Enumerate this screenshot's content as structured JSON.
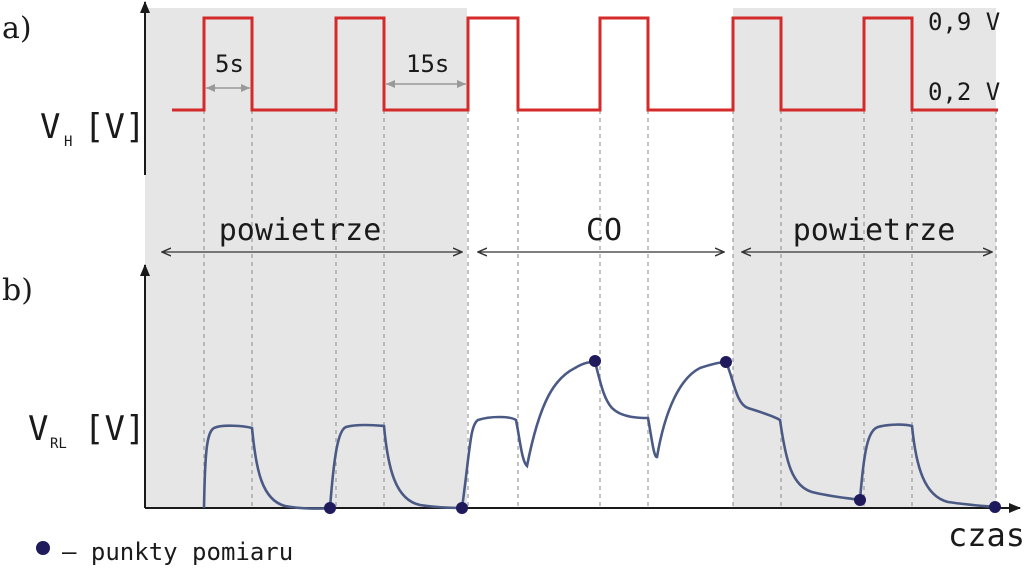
{
  "panels": {
    "a_label": "a)",
    "b_label": "b)"
  },
  "heater": {
    "axis_main": "V",
    "axis_sub": "H",
    "axis_unit": "[V]",
    "high_label": "0,9 V",
    "low_label": "0,2 V",
    "high_duration": "5s",
    "low_duration": "15s",
    "levels_V": [
      0.2,
      0.9
    ],
    "high_phase_s": 5,
    "low_phase_s": 15
  },
  "phases": [
    {
      "label": "powietrze",
      "shaded": true
    },
    {
      "label": "CO",
      "shaded": false
    },
    {
      "label": "powietrze",
      "shaded": true
    }
  ],
  "response": {
    "axis_main": "V",
    "axis_sub": "RL",
    "axis_unit": "[V]"
  },
  "x_axis_label": "czas",
  "legend": {
    "text": "– punkty pomiaru",
    "marker_color": "#1f1a5c"
  },
  "colors": {
    "heater_line": "#d42a2a",
    "response_line": "#4a5a85",
    "shade": "#e6e6e6",
    "marker": "#1f1a5c"
  }
}
